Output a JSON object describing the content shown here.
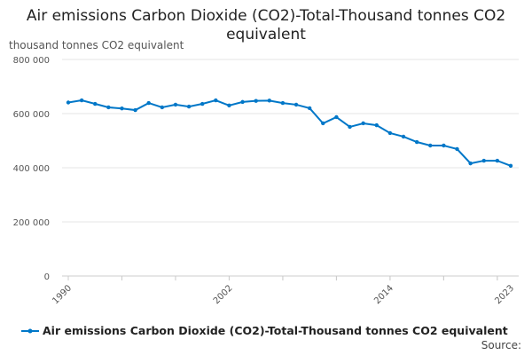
{
  "chart_data": {
    "type": "line",
    "title": "Air emissions Carbon Dioxide (CO2)-Total-Thousand tonnes CO2 equivalent",
    "ylabel": "thousand tonnes CO2 equivalent",
    "xlabel": "",
    "ylim": [
      0,
      800000
    ],
    "yticks": [
      "0",
      "200 000",
      "400 000",
      "600 000",
      "800 000"
    ],
    "xticks": [
      "1990",
      "2002",
      "2014",
      "2023"
    ],
    "grid": true,
    "legend_position": "bottom",
    "color": "#0077c8",
    "x": [
      1990,
      1991,
      1992,
      1993,
      1994,
      1995,
      1996,
      1997,
      1998,
      1999,
      2000,
      2001,
      2002,
      2003,
      2004,
      2005,
      2006,
      2007,
      2008,
      2009,
      2010,
      2011,
      2012,
      2013,
      2014,
      2015,
      2016,
      2017,
      2018,
      2019,
      2020,
      2021,
      2022,
      2023
    ],
    "series": [
      {
        "name": "Air emissions Carbon Dioxide (CO2)-Total-Thousand tonnes CO2 equivalent",
        "values": [
          641000,
          649000,
          636000,
          623000,
          619000,
          613000,
          639000,
          623000,
          633000,
          626000,
          636000,
          649000,
          630000,
          643000,
          647000,
          648000,
          639000,
          633000,
          620000,
          564000,
          587000,
          551000,
          564000,
          557000,
          528000,
          515000,
          495000,
          482000,
          482000,
          469000,
          416000,
          426000,
          426000,
          407000
        ]
      }
    ]
  },
  "source_label": "Source:"
}
